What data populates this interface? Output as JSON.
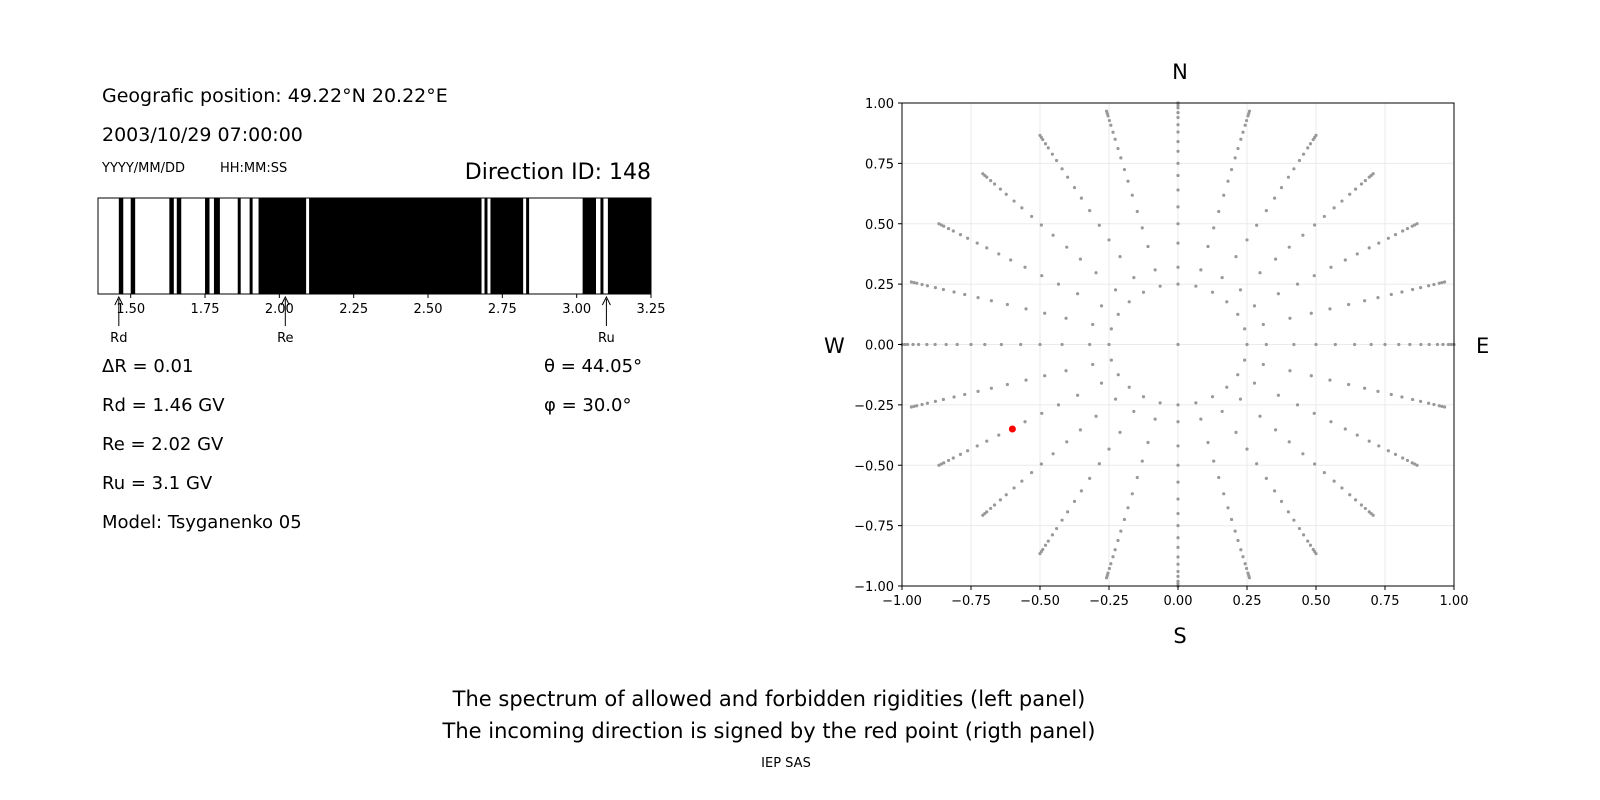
{
  "left_panel": {
    "position_text": "Geografic position: 49.22°N 20.22°E",
    "datetime_text": "2003/10/29 07:00:00",
    "date_format": "YYYY/MM/DD",
    "time_format": "HH:MM:SS",
    "direction_id": "Direction ID: 148",
    "delta_r": "ΔR = 0.01",
    "rd": "Rd = 1.46 GV",
    "re": "Re = 2.02 GV",
    "ru": "Ru = 3.1 GV",
    "model": "Model: Tsyganenko 05",
    "theta": "θ = 44.05°",
    "phi": "φ = 30.0°",
    "marker_labels": {
      "rd": "Rd",
      "re": "Re",
      "ru": "Ru"
    }
  },
  "right_panel": {
    "north": "N",
    "south": "S",
    "west": "W",
    "east": "E"
  },
  "footer": {
    "line1": "The spectrum of allowed and forbidden rigidities (left panel)",
    "line2": "The incoming direction is signed by the red point (rigth panel)",
    "credit": "IEP SAS"
  },
  "colors": {
    "forbidden": "#000000",
    "allowed": "#ffffff",
    "grid_point": "#999999",
    "direction_point": "#ff0000"
  },
  "chart_data": [
    {
      "type": "bar",
      "xlim": [
        1.39,
        3.25
      ],
      "xticks": [
        "1.50",
        "1.75",
        "2.00",
        "2.25",
        "2.50",
        "2.75",
        "3.00",
        "3.25"
      ],
      "xtick_values": [
        1.5,
        1.75,
        2.0,
        2.25,
        2.5,
        2.75,
        3.0,
        3.25
      ],
      "forbidden_intervals": [
        [
          1.46,
          1.475
        ],
        [
          1.5,
          1.515
        ],
        [
          1.63,
          1.645
        ],
        [
          1.655,
          1.67
        ],
        [
          1.75,
          1.765
        ],
        [
          1.78,
          1.8
        ],
        [
          1.86,
          1.87
        ],
        [
          1.9,
          1.91
        ],
        [
          1.93,
          2.09
        ],
        [
          2.1,
          2.68
        ],
        [
          2.69,
          2.7
        ],
        [
          2.71,
          2.82
        ],
        [
          2.83,
          2.84
        ],
        [
          3.02,
          3.065
        ],
        [
          3.08,
          3.09
        ],
        [
          3.105,
          3.25
        ]
      ],
      "markers": [
        {
          "label": "Rd",
          "value": 1.46
        },
        {
          "label": "Re",
          "value": 2.02
        },
        {
          "label": "Ru",
          "value": 3.1
        }
      ]
    },
    {
      "type": "scatter",
      "xlim": [
        -1.0,
        1.0
      ],
      "ylim": [
        -1.0,
        1.0
      ],
      "xticks": [
        "−1.00",
        "−0.75",
        "−0.50",
        "−0.25",
        "0.00",
        "0.25",
        "0.50",
        "0.75",
        "1.00"
      ],
      "yticks": [
        "1.00",
        "0.75",
        "0.50",
        "0.25",
        "0.00",
        "−0.25",
        "−0.50",
        "−0.75",
        "−1.00"
      ],
      "tick_values": [
        -1.0,
        -0.75,
        -0.5,
        -0.25,
        0.0,
        0.25,
        0.5,
        0.75,
        1.0
      ],
      "grid": true,
      "grid_directions": {
        "ring_radius": 0.25,
        "ring_points": 24,
        "spoke_azimuths_deg": 24,
        "radii": [
          0.32,
          0.42,
          0.5,
          0.57,
          0.64,
          0.7,
          0.75,
          0.8,
          0.84,
          0.88,
          0.91,
          0.94,
          0.96,
          0.98,
          0.99,
          1.0
        ]
      },
      "red_point": {
        "x": -0.6,
        "y": -0.35
      }
    }
  ]
}
